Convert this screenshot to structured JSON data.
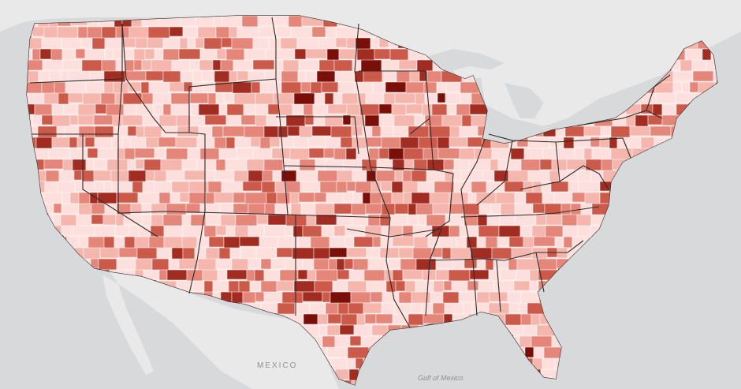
{
  "map": {
    "labels": {
      "country": "MEXICO",
      "water": "Gulf of Mexico"
    },
    "colors": {
      "background": "#d8d9db",
      "land_outside": "#e9e9ea",
      "water": "#d8d9db",
      "county_border": "#ffffff",
      "state_border": "#2b2b2b",
      "legend_scale": [
        "#fde0dd",
        "#f4b6ad",
        "#e4877a",
        "#cc5a4b",
        "#a12d22",
        "#7a0f0a"
      ]
    }
  }
}
